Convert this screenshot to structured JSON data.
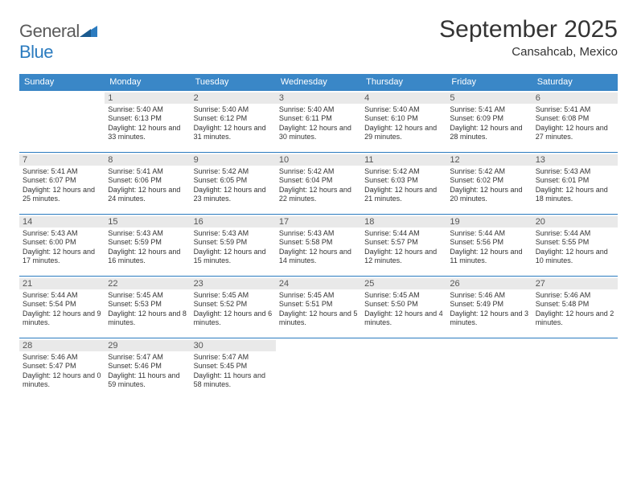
{
  "logo": {
    "text_left": "General",
    "text_right": "Blue"
  },
  "title": "September 2025",
  "location": "Cansahcab, Mexico",
  "weekday_headers": [
    "Sunday",
    "Monday",
    "Tuesday",
    "Wednesday",
    "Thursday",
    "Friday",
    "Saturday"
  ],
  "header_bg": "#3a87c7",
  "border_color": "#2b7bbf",
  "daynum_bg": "#e9e9e9",
  "weeks": [
    [
      null,
      {
        "n": "1",
        "sunrise": "5:40 AM",
        "sunset": "6:13 PM",
        "daylight": "12 hours and 33 minutes."
      },
      {
        "n": "2",
        "sunrise": "5:40 AM",
        "sunset": "6:12 PM",
        "daylight": "12 hours and 31 minutes."
      },
      {
        "n": "3",
        "sunrise": "5:40 AM",
        "sunset": "6:11 PM",
        "daylight": "12 hours and 30 minutes."
      },
      {
        "n": "4",
        "sunrise": "5:40 AM",
        "sunset": "6:10 PM",
        "daylight": "12 hours and 29 minutes."
      },
      {
        "n": "5",
        "sunrise": "5:41 AM",
        "sunset": "6:09 PM",
        "daylight": "12 hours and 28 minutes."
      },
      {
        "n": "6",
        "sunrise": "5:41 AM",
        "sunset": "6:08 PM",
        "daylight": "12 hours and 27 minutes."
      }
    ],
    [
      {
        "n": "7",
        "sunrise": "5:41 AM",
        "sunset": "6:07 PM",
        "daylight": "12 hours and 25 minutes."
      },
      {
        "n": "8",
        "sunrise": "5:41 AM",
        "sunset": "6:06 PM",
        "daylight": "12 hours and 24 minutes."
      },
      {
        "n": "9",
        "sunrise": "5:42 AM",
        "sunset": "6:05 PM",
        "daylight": "12 hours and 23 minutes."
      },
      {
        "n": "10",
        "sunrise": "5:42 AM",
        "sunset": "6:04 PM",
        "daylight": "12 hours and 22 minutes."
      },
      {
        "n": "11",
        "sunrise": "5:42 AM",
        "sunset": "6:03 PM",
        "daylight": "12 hours and 21 minutes."
      },
      {
        "n": "12",
        "sunrise": "5:42 AM",
        "sunset": "6:02 PM",
        "daylight": "12 hours and 20 minutes."
      },
      {
        "n": "13",
        "sunrise": "5:43 AM",
        "sunset": "6:01 PM",
        "daylight": "12 hours and 18 minutes."
      }
    ],
    [
      {
        "n": "14",
        "sunrise": "5:43 AM",
        "sunset": "6:00 PM",
        "daylight": "12 hours and 17 minutes."
      },
      {
        "n": "15",
        "sunrise": "5:43 AM",
        "sunset": "5:59 PM",
        "daylight": "12 hours and 16 minutes."
      },
      {
        "n": "16",
        "sunrise": "5:43 AM",
        "sunset": "5:59 PM",
        "daylight": "12 hours and 15 minutes."
      },
      {
        "n": "17",
        "sunrise": "5:43 AM",
        "sunset": "5:58 PM",
        "daylight": "12 hours and 14 minutes."
      },
      {
        "n": "18",
        "sunrise": "5:44 AM",
        "sunset": "5:57 PM",
        "daylight": "12 hours and 12 minutes."
      },
      {
        "n": "19",
        "sunrise": "5:44 AM",
        "sunset": "5:56 PM",
        "daylight": "12 hours and 11 minutes."
      },
      {
        "n": "20",
        "sunrise": "5:44 AM",
        "sunset": "5:55 PM",
        "daylight": "12 hours and 10 minutes."
      }
    ],
    [
      {
        "n": "21",
        "sunrise": "5:44 AM",
        "sunset": "5:54 PM",
        "daylight": "12 hours and 9 minutes."
      },
      {
        "n": "22",
        "sunrise": "5:45 AM",
        "sunset": "5:53 PM",
        "daylight": "12 hours and 8 minutes."
      },
      {
        "n": "23",
        "sunrise": "5:45 AM",
        "sunset": "5:52 PM",
        "daylight": "12 hours and 6 minutes."
      },
      {
        "n": "24",
        "sunrise": "5:45 AM",
        "sunset": "5:51 PM",
        "daylight": "12 hours and 5 minutes."
      },
      {
        "n": "25",
        "sunrise": "5:45 AM",
        "sunset": "5:50 PM",
        "daylight": "12 hours and 4 minutes."
      },
      {
        "n": "26",
        "sunrise": "5:46 AM",
        "sunset": "5:49 PM",
        "daylight": "12 hours and 3 minutes."
      },
      {
        "n": "27",
        "sunrise": "5:46 AM",
        "sunset": "5:48 PM",
        "daylight": "12 hours and 2 minutes."
      }
    ],
    [
      {
        "n": "28",
        "sunrise": "5:46 AM",
        "sunset": "5:47 PM",
        "daylight": "12 hours and 0 minutes."
      },
      {
        "n": "29",
        "sunrise": "5:47 AM",
        "sunset": "5:46 PM",
        "daylight": "11 hours and 59 minutes."
      },
      {
        "n": "30",
        "sunrise": "5:47 AM",
        "sunset": "5:45 PM",
        "daylight": "11 hours and 58 minutes."
      },
      null,
      null,
      null,
      null
    ]
  ]
}
